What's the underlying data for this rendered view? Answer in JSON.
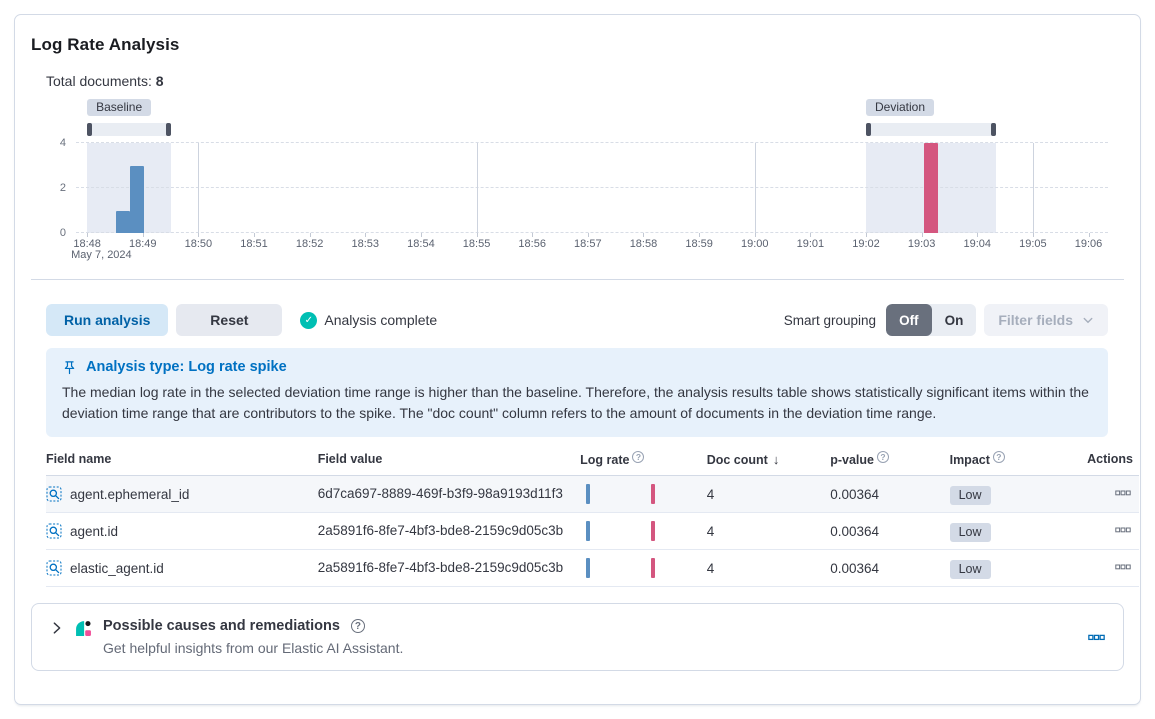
{
  "colors": {
    "accent_blue": "#0071C2",
    "bar_baseline": "#5B8FC1",
    "bar_deviation": "#D4567F",
    "success_teal": "#00BFB3",
    "badge_bg": "#D3DAE6",
    "callout_bg": "#E7F1FB",
    "border": "#D3DAE6"
  },
  "header": {
    "title": "Log Rate Analysis"
  },
  "summary": {
    "label": "Total documents:",
    "value": "8"
  },
  "chart_data": {
    "type": "bar",
    "title": "Document count histogram",
    "date_label": "May 7, 2024",
    "x_ticks": [
      "18:48",
      "18:49",
      "18:50",
      "18:51",
      "18:52",
      "18:53",
      "18:54",
      "18:55",
      "18:56",
      "18:57",
      "18:58",
      "18:59",
      "19:00",
      "19:01",
      "19:02",
      "19:03",
      "19:04",
      "19:05",
      "19:06"
    ],
    "x_domain_minutes": [
      -0.2,
      18.35
    ],
    "v_gridline_tick_indexes": [
      2,
      7,
      12,
      17
    ],
    "y_ticks": [
      0,
      2,
      4
    ],
    "ylim": [
      0,
      4
    ],
    "bars": [
      {
        "time": "18:48:40",
        "start_min": 0.52,
        "end_min": 0.77,
        "doc_count": 1,
        "series": "baseline"
      },
      {
        "time": "18:49:00",
        "start_min": 0.77,
        "end_min": 1.02,
        "doc_count": 3,
        "series": "deviation_baseline_blue",
        "value_note": "baseline bar",
        "series_key": "baseline"
      },
      {
        "time": "19:03:00",
        "start_min": 15.05,
        "end_min": 15.3,
        "doc_count": 4,
        "series": "deviation"
      }
    ],
    "brushes": [
      {
        "label": "Baseline",
        "start": "18:48:00",
        "end": "18:49:30",
        "start_min": 0,
        "end_min": 1.5
      },
      {
        "label": "Deviation",
        "start": "19:02:00",
        "end": "19:04:20",
        "start_min": 14.0,
        "end_min": 16.33
      }
    ],
    "series_colors": {
      "baseline": "#5B8FC1",
      "deviation": "#D4567F"
    },
    "region_fill": "#E7EBF4",
    "legend": "off"
  },
  "toolbar": {
    "run_button": "Run analysis",
    "reset_button": "Reset",
    "status_text": "Analysis complete",
    "smart_grouping_label": "Smart grouping",
    "toggle_options": [
      "Off",
      "On"
    ],
    "toggle_selected": "Off",
    "filter_fields_button": "Filter fields"
  },
  "callout": {
    "title": "Analysis type: Log rate spike",
    "body": "The median log rate in the selected deviation time range is higher than the baseline. Therefore, the analysis results table shows statistically significant items within the deviation time range that are contributors to the spike. The \"doc count\" column refers to the amount of documents in the deviation time range."
  },
  "table": {
    "columns": {
      "field_name": "Field name",
      "field_value": "Field value",
      "log_rate": "Log rate",
      "doc_count": "Doc count",
      "p_value": "p-value",
      "impact": "Impact",
      "actions": "Actions"
    },
    "sort_icon": "↓",
    "rows": [
      {
        "field_name": "agent.ephemeral_id",
        "field_value": "6d7ca697-8889-469f-b3f9-98a9193d11f3",
        "doc_count": "4",
        "p_value": "0.00364",
        "impact": "Low"
      },
      {
        "field_name": "agent.id",
        "field_value": "2a5891f6-8fe7-4bf3-bde8-2159c9d05c3b",
        "doc_count": "4",
        "p_value": "0.00364",
        "impact": "Low"
      },
      {
        "field_name": "elastic_agent.id",
        "field_value": "2a5891f6-8fe7-4bf3-bde8-2159c9d05c3b",
        "doc_count": "4",
        "p_value": "0.00364",
        "impact": "Low"
      }
    ]
  },
  "footer": {
    "title": "Possible causes and remediations",
    "subtitle": "Get helpful insights from our Elastic AI Assistant."
  },
  "icons": {
    "check": "✓",
    "question": "?"
  }
}
